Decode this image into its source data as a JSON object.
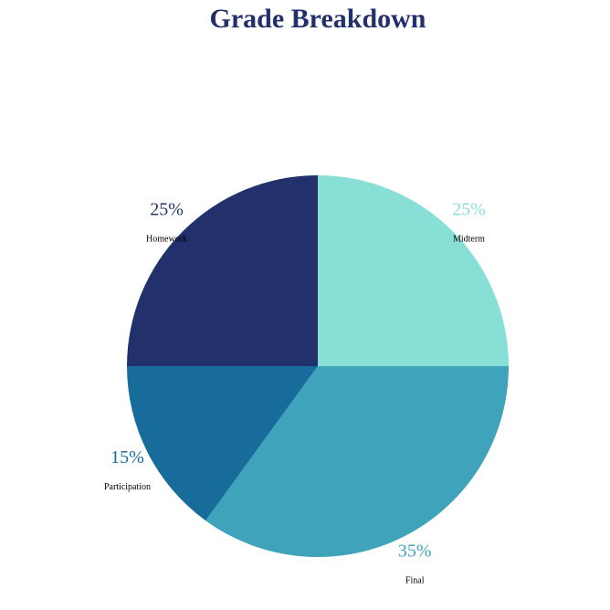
{
  "chart_data": {
    "type": "pie",
    "title": "Grade Breakdown",
    "slices": [
      {
        "label": "Midterm",
        "value": 25,
        "display": "25%",
        "color": "#88dfd6"
      },
      {
        "label": "Final",
        "value": 35,
        "display": "35%",
        "color": "#3fa3bc"
      },
      {
        "label": "Participation",
        "value": 15,
        "display": "15%",
        "color": "#186c9c"
      },
      {
        "label": "Homework",
        "value": 25,
        "display": "25%",
        "color": "#22306b"
      }
    ],
    "start_angle_deg": 90,
    "direction": "clockwise",
    "legend": "none"
  }
}
